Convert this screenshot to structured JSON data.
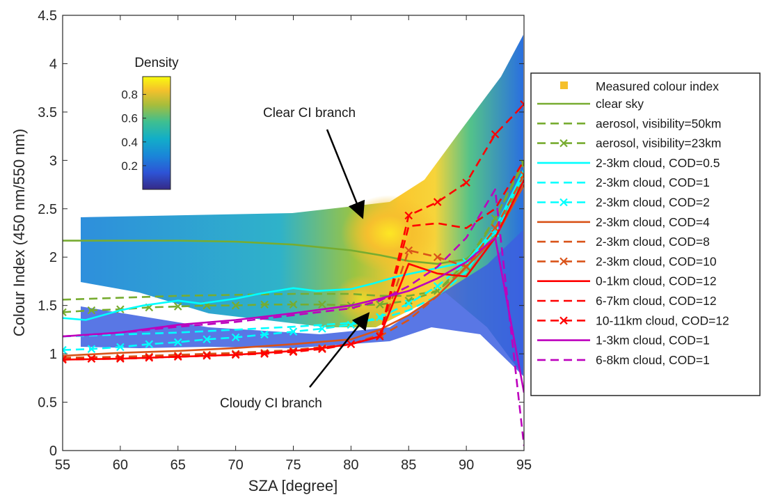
{
  "chart_data": {
    "type": "line",
    "xlabel": "SZA [degree]",
    "ylabel": "Colour Index (450 nm/550 nm)",
    "xlim": [
      55,
      95
    ],
    "ylim": [
      0,
      4.5
    ],
    "x_ticks": [
      "55",
      "60",
      "65",
      "70",
      "75",
      "80",
      "85",
      "90",
      "95"
    ],
    "y_ticks": [
      "0",
      "0.5",
      "1",
      "1.5",
      "2",
      "2.5",
      "3",
      "3.5",
      "4",
      "4.5"
    ],
    "grid": false,
    "legend_position": "outside-right",
    "colorbar": {
      "title": "Density",
      "range": [
        0,
        0.95
      ],
      "ticks": [
        "0.2",
        "0.4",
        "0.6",
        "0.8"
      ]
    },
    "annotations": [
      {
        "text": "Clear CI branch",
        "x": 82,
        "y": 2.35
      },
      {
        "text": "Cloudy CI branch",
        "x": 82,
        "y": 1.25
      }
    ],
    "scatter_label": "Measured colour index",
    "series": [
      {
        "name": "clear sky",
        "color": "#77ac30",
        "dash": "solid",
        "marker": "none",
        "x": [
          55,
          60,
          65,
          70,
          75,
          80,
          82.5,
          85,
          87.5,
          90,
          92.5,
          95
        ],
        "y": [
          2.17,
          2.17,
          2.17,
          2.16,
          2.13,
          2.07,
          2.02,
          1.96,
          1.93,
          1.98,
          2.22,
          2.85
        ]
      },
      {
        "name": "aerosol, visibility=50km",
        "color": "#77ac30",
        "dash": "dash",
        "marker": "none",
        "x": [
          55,
          60,
          65,
          70,
          75,
          80,
          82.5,
          85,
          87.5,
          90,
          92.5,
          95
        ],
        "y": [
          1.56,
          1.58,
          1.6,
          1.61,
          1.62,
          1.62,
          1.6,
          1.6,
          1.65,
          1.95,
          2.4,
          3.0
        ]
      },
      {
        "name": "aerosol, visibility=23km",
        "color": "#77ac30",
        "dash": "dash",
        "marker": "x",
        "x": [
          55,
          57.5,
          60,
          62.5,
          65,
          67.5,
          70,
          72.5,
          75,
          77.5,
          80,
          82.5,
          85,
          87.5,
          90,
          92.5,
          95
        ],
        "y": [
          1.43,
          1.45,
          1.46,
          1.48,
          1.49,
          1.5,
          1.5,
          1.51,
          1.51,
          1.51,
          1.5,
          1.51,
          1.55,
          1.65,
          1.9,
          2.4,
          2.97
        ]
      },
      {
        "name": "2-3km cloud, COD=0.5",
        "color": "#00ffff",
        "dash": "solid",
        "marker": "none",
        "x": [
          55,
          57,
          60,
          62,
          65,
          67,
          70,
          72,
          75,
          77,
          80,
          82,
          84,
          86,
          88,
          90,
          92.5,
          95
        ],
        "y": [
          1.37,
          1.35,
          1.45,
          1.5,
          1.55,
          1.52,
          1.57,
          1.62,
          1.68,
          1.65,
          1.67,
          1.73,
          1.8,
          1.85,
          1.9,
          1.95,
          2.3,
          2.9
        ]
      },
      {
        "name": "2-3km cloud, COD=1",
        "color": "#00ffff",
        "dash": "dash",
        "marker": "none",
        "x": [
          55,
          60,
          65,
          70,
          75,
          80,
          82.5,
          85,
          87.5,
          90,
          92.5,
          95
        ],
        "y": [
          1.18,
          1.2,
          1.22,
          1.25,
          1.28,
          1.32,
          1.36,
          1.45,
          1.6,
          1.85,
          2.3,
          2.85
        ]
      },
      {
        "name": "2-3km cloud, COD=2",
        "color": "#00ffff",
        "dash": "dash",
        "marker": "x",
        "x": [
          55,
          57.5,
          60,
          62.5,
          65,
          67.5,
          70,
          72.5,
          75,
          77.5,
          80,
          82.5,
          85,
          87.5,
          90,
          92.5,
          95
        ],
        "y": [
          1.04,
          1.05,
          1.07,
          1.1,
          1.12,
          1.15,
          1.17,
          1.2,
          1.23,
          1.26,
          1.3,
          1.38,
          1.52,
          1.7,
          1.95,
          2.25,
          2.8
        ]
      },
      {
        "name": "2-3km cloud, COD=4",
        "color": "#d95319",
        "dash": "solid",
        "marker": "none",
        "x": [
          55,
          60,
          65,
          70,
          75,
          80,
          82.5,
          85,
          87.5,
          90,
          92.5,
          95
        ],
        "y": [
          0.98,
          1.01,
          1.03,
          1.06,
          1.1,
          1.15,
          1.25,
          1.4,
          1.6,
          1.9,
          2.2,
          2.75
        ]
      },
      {
        "name": "2-3km cloud, COD=8",
        "color": "#d95319",
        "dash": "dash",
        "marker": "none",
        "x": [
          55,
          60,
          65,
          70,
          75,
          80,
          82.5,
          85,
          87.5,
          90,
          92.5,
          95
        ],
        "y": [
          0.96,
          0.97,
          0.99,
          1.01,
          1.04,
          1.1,
          1.18,
          1.35,
          1.6,
          1.9,
          2.2,
          2.8
        ]
      },
      {
        "name": "2-3km cloud, COD=10",
        "color": "#d95319",
        "dash": "dash",
        "marker": "x",
        "x": [
          55,
          57.5,
          60,
          62.5,
          65,
          67.5,
          70,
          72.5,
          75,
          77.5,
          80,
          82.5,
          85,
          87.5,
          90,
          92.5,
          95
        ],
        "y": [
          0.95,
          0.95,
          0.96,
          0.97,
          0.98,
          0.99,
          1.0,
          1.01,
          1.03,
          1.06,
          1.1,
          1.2,
          2.07,
          2.0,
          1.9,
          2.3,
          2.85
        ]
      },
      {
        "name": "0-1km cloud, COD=12",
        "color": "#ff0000",
        "dash": "solid",
        "marker": "none",
        "x": [
          55,
          60,
          65,
          70,
          75,
          77.5,
          80,
          82.5,
          85,
          87.5,
          90,
          92.5,
          95
        ],
        "y": [
          0.94,
          0.95,
          0.97,
          0.99,
          1.03,
          1.06,
          1.1,
          1.18,
          1.93,
          1.83,
          1.8,
          2.2,
          2.8
        ]
      },
      {
        "name": "6-7km cloud, COD=12",
        "color": "#ff0000",
        "dash": "dash",
        "marker": "none",
        "x": [
          55,
          60,
          65,
          70,
          75,
          77.5,
          80,
          82.5,
          85,
          87.5,
          90,
          92.5,
          95
        ],
        "y": [
          0.94,
          0.95,
          0.97,
          0.99,
          1.03,
          1.06,
          1.1,
          1.18,
          2.32,
          2.35,
          2.3,
          2.5,
          3.0
        ]
      },
      {
        "name": "10-11km cloud, COD=12",
        "color": "#ff0000",
        "dash": "dash",
        "marker": "x",
        "x": [
          55,
          57.5,
          60,
          62.5,
          65,
          67.5,
          70,
          72.5,
          75,
          77.5,
          80,
          82.5,
          85,
          87.5,
          90,
          92.5,
          95
        ],
        "y": [
          0.94,
          0.95,
          0.95,
          0.96,
          0.97,
          0.98,
          0.99,
          1.0,
          1.02,
          1.05,
          1.1,
          1.18,
          2.43,
          2.57,
          2.77,
          3.27,
          3.58
        ]
      },
      {
        "name": "1-3km cloud, COD=1",
        "color": "#bd00bd",
        "dash": "solid",
        "marker": "none",
        "x": [
          55,
          60,
          65,
          70,
          75,
          80,
          82.5,
          85,
          87.5,
          90,
          92.5,
          95
        ],
        "y": [
          1.18,
          1.22,
          1.3,
          1.35,
          1.42,
          1.5,
          1.57,
          1.65,
          1.78,
          1.95,
          2.2,
          0.6
        ]
      },
      {
        "name": "6-8km cloud, COD=1",
        "color": "#bd00bd",
        "dash": "dash",
        "marker": "none",
        "x": [
          55,
          60,
          65,
          70,
          75,
          80,
          82.5,
          85,
          87.5,
          90,
          92.5,
          95
        ],
        "y": [
          1.18,
          1.22,
          1.28,
          1.33,
          1.4,
          1.47,
          1.55,
          1.7,
          1.9,
          2.2,
          2.7,
          0.05
        ]
      }
    ]
  }
}
